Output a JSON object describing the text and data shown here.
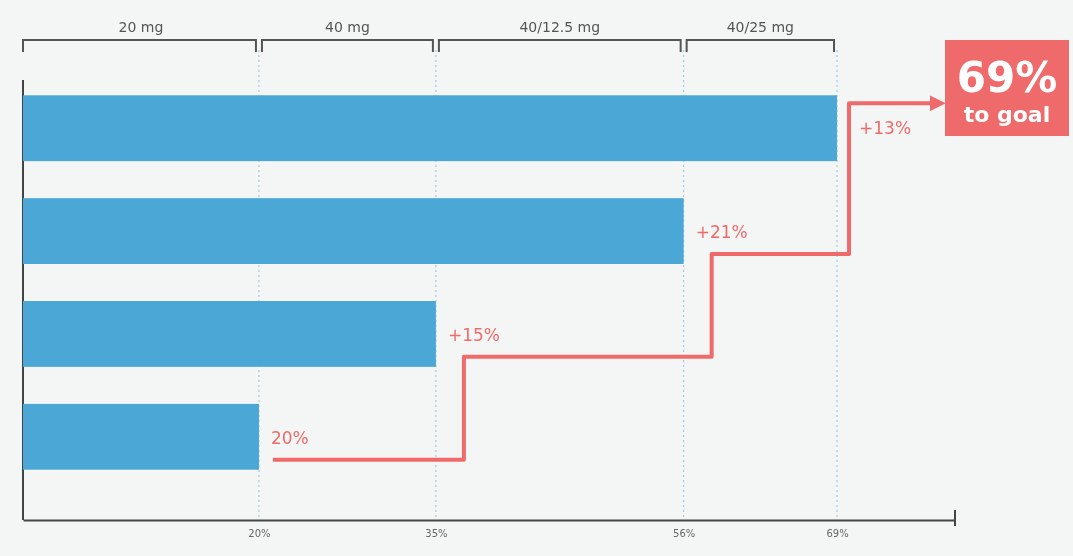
{
  "chart_data": {
    "type": "bar",
    "orientation": "horizontal",
    "categories": [
      null,
      null,
      null,
      null
    ],
    "values": [
      69,
      56,
      35,
      20
    ],
    "color": "#4aa7d6",
    "xlim": [
      0,
      79
    ],
    "xticks": [
      {
        "value": 20,
        "label": "20%"
      },
      {
        "value": 35,
        "label": "35%"
      },
      {
        "value": 56,
        "label": "56%"
      },
      {
        "value": 69,
        "label": "69%"
      }
    ],
    "grid": "x",
    "annotations": [
      {
        "text": "+13%",
        "x": 69
      },
      {
        "text": "+21%",
        "x": 56
      },
      {
        "text": "+15%",
        "x": 35
      },
      {
        "text": "20%",
        "x": 20
      },
      "20 mg",
      "40 mg",
      "40/12.5 mg",
      "40/25 mg",
      "69%",
      "to goal"
    ]
  }
}
